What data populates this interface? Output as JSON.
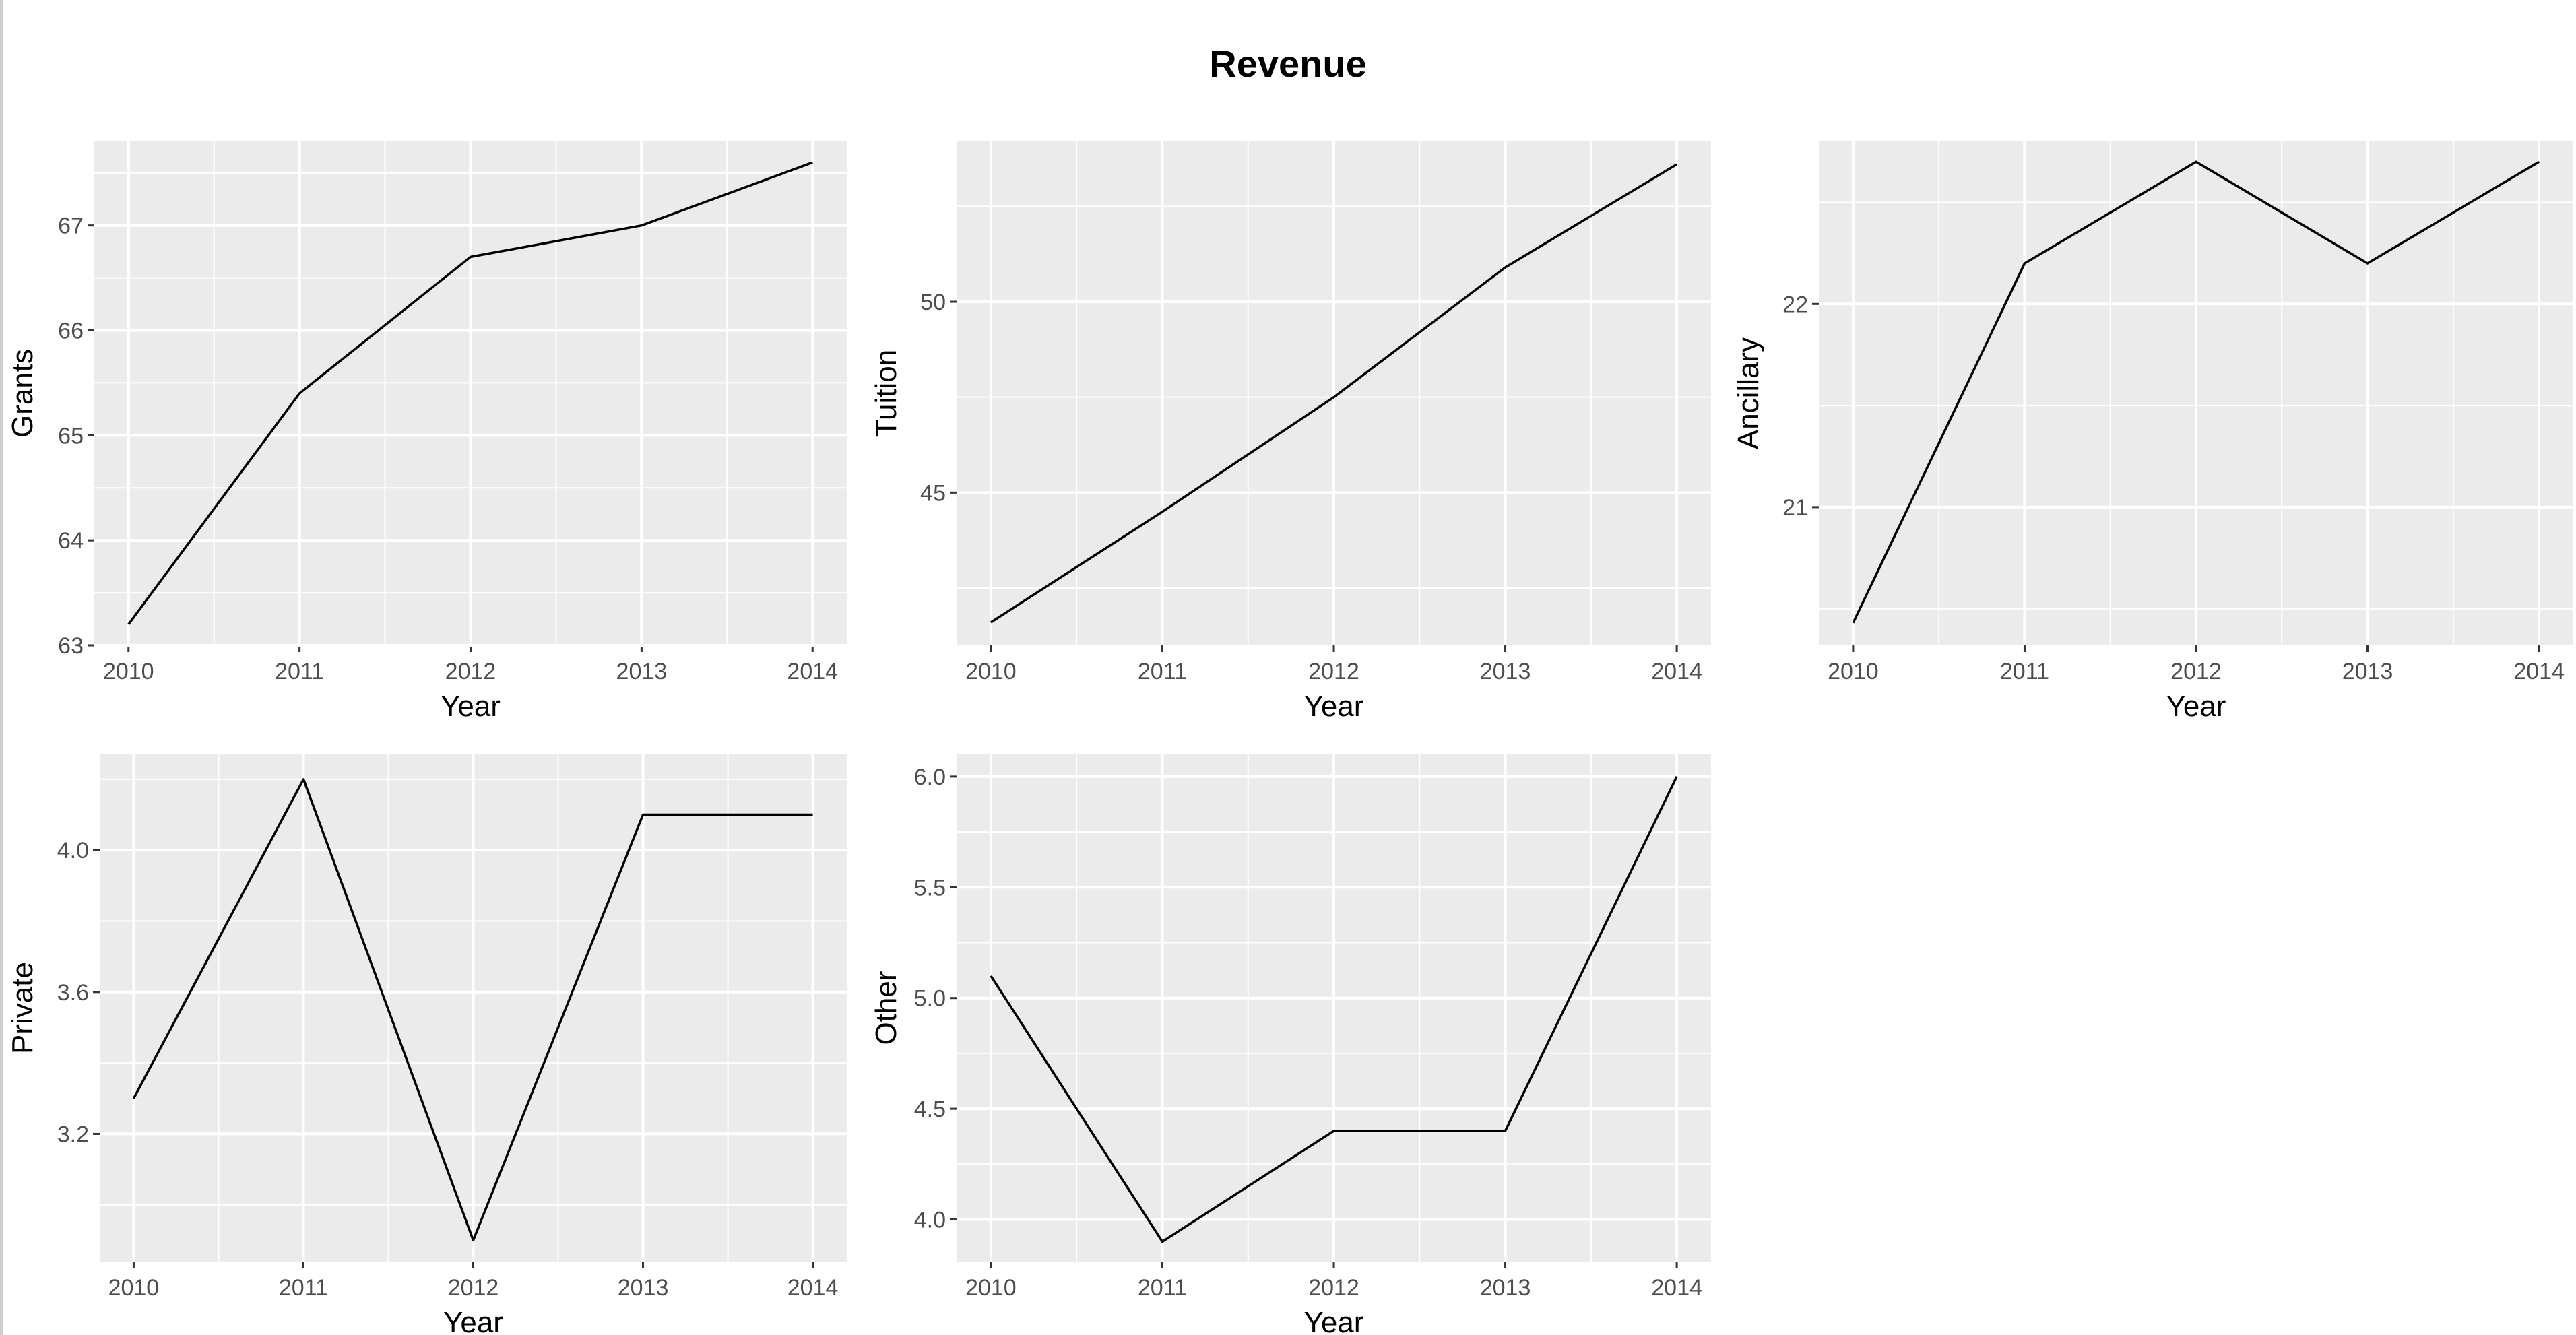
{
  "title": "Revenue",
  "chart_data": [
    {
      "type": "line",
      "x": [
        2010,
        2011,
        2012,
        2013,
        2014
      ],
      "y": [
        63.2,
        65.4,
        66.7,
        67.0,
        67.6
      ],
      "xlabel": "Year",
      "ylabel": "Grants",
      "xlim": [
        2009.8,
        2014.2
      ],
      "ylim": [
        63.0,
        67.8
      ],
      "y_ticks": [
        63,
        64,
        65,
        66,
        67
      ],
      "y_tick_labels": [
        "63",
        "64",
        "65",
        "66",
        "67"
      ],
      "x_ticks": [
        2010,
        2011,
        2012,
        2013,
        2014
      ],
      "x_tick_labels": [
        "2010",
        "2011",
        "2012",
        "2013",
        "2014"
      ],
      "grid": true
    },
    {
      "type": "line",
      "x": [
        2010,
        2011,
        2012,
        2013,
        2014
      ],
      "y": [
        41.6,
        44.5,
        47.5,
        50.9,
        53.6
      ],
      "xlabel": "Year",
      "ylabel": "Tuition",
      "xlim": [
        2009.8,
        2014.2
      ],
      "ylim": [
        41.0,
        54.2
      ],
      "y_ticks": [
        45,
        50
      ],
      "y_tick_labels": [
        "45",
        "50"
      ],
      "x_ticks": [
        2010,
        2011,
        2012,
        2013,
        2014
      ],
      "x_tick_labels": [
        "2010",
        "2011",
        "2012",
        "2013",
        "2014"
      ],
      "grid": true
    },
    {
      "type": "line",
      "x": [
        2010,
        2011,
        2012,
        2013,
        2014
      ],
      "y": [
        20.43,
        22.2,
        22.7,
        22.2,
        22.7
      ],
      "xlabel": "Year",
      "ylabel": "Ancillary",
      "xlim": [
        2009.8,
        2014.2
      ],
      "ylim": [
        20.32,
        22.8
      ],
      "y_ticks": [
        21,
        22
      ],
      "y_tick_labels": [
        "21",
        "22"
      ],
      "x_ticks": [
        2010,
        2011,
        2012,
        2013,
        2014
      ],
      "x_tick_labels": [
        "2010",
        "2011",
        "2012",
        "2013",
        "2014"
      ],
      "grid": true
    },
    {
      "type": "line",
      "x": [
        2010,
        2011,
        2012,
        2013,
        2014
      ],
      "y": [
        3.3,
        4.2,
        2.9,
        4.1,
        4.1
      ],
      "xlabel": "Year",
      "ylabel": "Private",
      "xlim": [
        2009.8,
        2014.2
      ],
      "ylim": [
        2.84,
        4.27
      ],
      "y_ticks": [
        3.2,
        3.6,
        4.0
      ],
      "y_tick_labels": [
        "3.2",
        "3.6",
        "4.0"
      ],
      "x_ticks": [
        2010,
        2011,
        2012,
        2013,
        2014
      ],
      "x_tick_labels": [
        "2010",
        "2011",
        "2012",
        "2013",
        "2014"
      ],
      "grid": true
    },
    {
      "type": "line",
      "x": [
        2010,
        2011,
        2012,
        2013,
        2014
      ],
      "y": [
        5.1,
        3.9,
        4.4,
        4.4,
        6.0
      ],
      "xlabel": "Year",
      "ylabel": "Other",
      "xlim": [
        2009.8,
        2014.2
      ],
      "ylim": [
        3.81,
        6.1
      ],
      "y_ticks": [
        4.0,
        4.5,
        5.0,
        5.5,
        6.0
      ],
      "y_tick_labels": [
        "4.0",
        "4.5",
        "5.0",
        "5.5",
        "6.0"
      ],
      "x_ticks": [
        2010,
        2011,
        2012,
        2013,
        2014
      ],
      "x_tick_labels": [
        "2010",
        "2011",
        "2012",
        "2013",
        "2014"
      ],
      "grid": true
    }
  ]
}
